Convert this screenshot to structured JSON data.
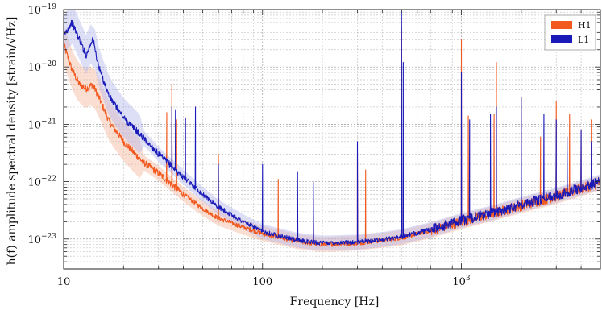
{
  "chart_data": {
    "type": "line",
    "xscale": "log",
    "yscale": "log",
    "xlim": [
      10,
      5000
    ],
    "ylim": [
      3e-24,
      1e-19
    ],
    "xlabel": "Frequency [Hz]",
    "ylabel": "h(f) amplitude spectral density [strain/√Hz]",
    "x_ticklabels": [
      "10",
      "100",
      "10^3"
    ],
    "y_ticklabels": [
      "10^-19",
      "10^-20",
      "10^-21",
      "10^-22",
      "10^-23"
    ],
    "grid": "on (major and minor, dotted)",
    "legend_position": "top-right",
    "series": [
      {
        "name": "H1",
        "color": "#f2591e",
        "band_color": "#f6b59c",
        "baseline": [
          [
            10,
            2.5e-20
          ],
          [
            11,
            9e-21
          ],
          [
            12,
            5e-21
          ],
          [
            13,
            4.2e-21
          ],
          [
            14,
            5e-21
          ],
          [
            15,
            3e-21
          ],
          [
            17,
            1.1e-21
          ],
          [
            20,
            5e-22
          ],
          [
            25,
            2.2e-22
          ],
          [
            30,
            1.4e-22
          ],
          [
            40,
            6e-23
          ],
          [
            50,
            3.4e-23
          ],
          [
            60,
            2.3e-23
          ],
          [
            80,
            1.6e-23
          ],
          [
            100,
            1.25e-23
          ],
          [
            150,
            9e-24
          ],
          [
            200,
            8e-24
          ],
          [
            300,
            8.5e-24
          ],
          [
            400,
            9.5e-24
          ],
          [
            500,
            1.05e-23
          ],
          [
            700,
            1.4e-23
          ],
          [
            1000,
            2e-23
          ],
          [
            1500,
            2.9e-23
          ],
          [
            2000,
            3.8e-23
          ],
          [
            3000,
            5.5e-23
          ],
          [
            4000,
            7.5e-23
          ],
          [
            5000,
            9.5e-23
          ]
        ],
        "spikes": [
          [
            33,
            1.6e-21
          ],
          [
            35,
            5e-21
          ],
          [
            37,
            1.2e-21
          ],
          [
            60,
            3e-22
          ],
          [
            120,
            1.1e-22
          ],
          [
            180,
            5e-23
          ],
          [
            300,
            3e-22
          ],
          [
            330,
            1.6e-22
          ],
          [
            500,
            5e-20
          ],
          [
            1000,
            3e-20
          ],
          [
            1083,
            1.4e-21
          ],
          [
            1460,
            1.5e-21
          ],
          [
            1500,
            1.2e-20
          ],
          [
            2000,
            3e-21
          ],
          [
            2500,
            6e-22
          ],
          [
            3000,
            2.5e-21
          ],
          [
            3500,
            1.5e-21
          ],
          [
            4000,
            8e-22
          ],
          [
            4500,
            1.2e-21
          ]
        ]
      },
      {
        "name": "L1",
        "color": "#1a1ab8",
        "band_color": "#b4b8ec",
        "baseline": [
          [
            10,
            3.5e-20
          ],
          [
            11,
            6e-20
          ],
          [
            12,
            3e-20
          ],
          [
            13,
            1.6e-20
          ],
          [
            14,
            3.2e-20
          ],
          [
            15,
            1e-20
          ],
          [
            17,
            3e-21
          ],
          [
            20,
            1.3e-21
          ],
          [
            25,
            6e-22
          ],
          [
            30,
            3e-22
          ],
          [
            40,
            1.2e-22
          ],
          [
            50,
            6e-23
          ],
          [
            60,
            3.6e-23
          ],
          [
            80,
            2e-23
          ],
          [
            100,
            1.35e-23
          ],
          [
            150,
            9.5e-24
          ],
          [
            200,
            8.5e-24
          ],
          [
            300,
            8.8e-24
          ],
          [
            400,
            9.8e-24
          ],
          [
            500,
            1.1e-23
          ],
          [
            700,
            1.45e-23
          ],
          [
            1000,
            2.1e-23
          ],
          [
            1500,
            3e-23
          ],
          [
            2000,
            4e-23
          ],
          [
            3000,
            5.8e-23
          ],
          [
            4000,
            7.8e-23
          ],
          [
            5000,
            1e-22
          ]
        ],
        "spikes": [
          [
            35,
            2e-21
          ],
          [
            36.5,
            1.8e-21
          ],
          [
            41,
            1.3e-21
          ],
          [
            46,
            2e-21
          ],
          [
            60,
            2e-22
          ],
          [
            100,
            2e-22
          ],
          [
            150,
            1.5e-22
          ],
          [
            180,
            1e-22
          ],
          [
            300,
            5e-22
          ],
          [
            500,
            1e-19
          ],
          [
            510,
            1.2e-20
          ],
          [
            1000,
            8e-21
          ],
          [
            1100,
            1.2e-21
          ],
          [
            1400,
            1.5e-21
          ],
          [
            1500,
            2e-21
          ],
          [
            2000,
            3e-21
          ],
          [
            2600,
            1.5e-21
          ],
          [
            3000,
            1.2e-21
          ],
          [
            3400,
            6e-22
          ],
          [
            4000,
            8e-22
          ],
          [
            4500,
            5e-22
          ]
        ]
      }
    ]
  }
}
